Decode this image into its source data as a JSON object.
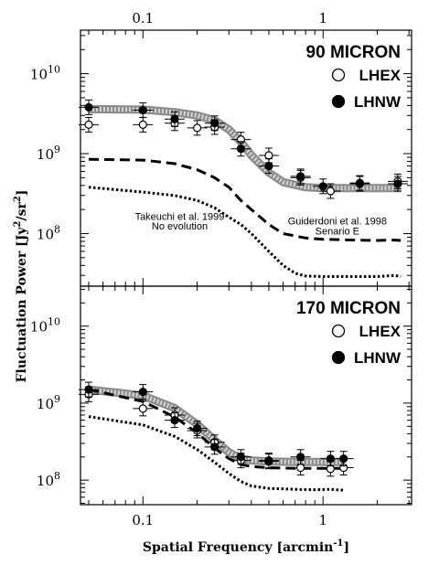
{
  "figure": {
    "xlabel_main": "Spatial Frequency [arcmin",
    "xlabel_sup": "-1",
    "xlabel_end": "]",
    "ylabel_main": "Fluctuation Power [Jy",
    "ylabel_sup1": "2",
    "ylabel_mid": "/sr",
    "ylabel_sup2": "2",
    "ylabel_end": "]"
  },
  "chart_data": [
    {
      "type": "scatter",
      "title": "90 MICRON",
      "x_scale": "log",
      "y_scale": "log",
      "xlim": [
        0.045,
        3.1
      ],
      "ylim": [
        22000000.0,
        35000000000.0
      ],
      "x_ticks": [
        {
          "value": 0.1,
          "label": "0.1"
        },
        {
          "value": 1,
          "label": "1"
        }
      ],
      "y_ticks": [
        {
          "value": 100000000.0,
          "base": "10",
          "exp": "8"
        },
        {
          "value": 1000000000.0,
          "base": "10",
          "exp": "9"
        },
        {
          "value": 10000000000.0,
          "base": "10",
          "exp": "10"
        }
      ],
      "top_axis_labels": true,
      "legend_position": "top-right",
      "series": [
        {
          "name": "LHEX",
          "marker": "open-circle",
          "x": [
            0.05,
            0.1,
            0.15,
            0.2,
            0.25,
            0.35,
            0.5,
            0.75,
            1.1,
            1.6,
            2.6
          ],
          "y": [
            2300000000.0,
            2300000000.0,
            2400000000.0,
            2100000000.0,
            2150000000.0,
            1500000000.0,
            950000000.0,
            500000000.0,
            340000000.0,
            430000000.0,
            450000000.0
          ]
        },
        {
          "name": "LHNW",
          "marker": "filled-circle",
          "x": [
            0.05,
            0.1,
            0.15,
            0.25,
            0.35,
            0.5,
            0.75,
            1.0,
            1.6,
            2.6
          ],
          "y": [
            3800000000.0,
            3500000000.0,
            2700000000.0,
            2400000000.0,
            1150000000.0,
            700000000.0,
            520000000.0,
            390000000.0,
            420000000.0,
            420000000.0
          ]
        },
        {
          "style": "thick-gray-band",
          "x": [
            0.05,
            0.1,
            0.15,
            0.2,
            0.25,
            0.3,
            0.35,
            0.4,
            0.5,
            0.6,
            0.8,
            1.0,
            1.5,
            2.0,
            2.7
          ],
          "y": [
            3600000000.0,
            3550000000.0,
            3300000000.0,
            3000000000.0,
            2600000000.0,
            2000000000.0,
            1400000000.0,
            950000000.0,
            580000000.0,
            440000000.0,
            380000000.0,
            370000000.0,
            370000000.0,
            370000000.0,
            370000000.0
          ]
        },
        {
          "style": "dashed",
          "x": [
            0.05,
            0.1,
            0.15,
            0.2,
            0.25,
            0.3,
            0.35,
            0.4,
            0.5,
            0.6,
            0.8,
            1.0,
            1.5,
            2.0,
            2.5,
            2.7
          ],
          "y": [
            850000000.0,
            830000000.0,
            750000000.0,
            630000000.0,
            500000000.0,
            380000000.0,
            260000000.0,
            200000000.0,
            130000000.0,
            100000000.0,
            88000000.0,
            85000000.0,
            83000000.0,
            82000000.0,
            83000000.0,
            82000000.0
          ]
        },
        {
          "style": "dotted",
          "x": [
            0.05,
            0.1,
            0.15,
            0.2,
            0.25,
            0.3,
            0.35,
            0.4,
            0.5,
            0.6,
            0.7,
            0.8,
            1.0,
            1.5,
            2.0,
            2.5,
            2.7
          ],
          "y": [
            380000000.0,
            330000000.0,
            300000000.0,
            260000000.0,
            210000000.0,
            160000000.0,
            130000000.0,
            100000000.0,
            60000000.0,
            40000000.0,
            32000000.0,
            29500000.0,
            29000000.0,
            29000000.0,
            29000000.0,
            30000000.0,
            29000000.0
          ]
        }
      ],
      "annotations": [
        {
          "text": "Takeuchi et al. 1999",
          "x": 0.16,
          "y": 148000000.0
        },
        {
          "text": "No evolution",
          "x": 0.16,
          "y": 112000000.0
        },
        {
          "text": "Guiderdoni et al. 1998",
          "x": 1.2,
          "y": 130000000.0
        },
        {
          "text": "Senario E",
          "x": 1.2,
          "y": 98000000.0
        }
      ]
    },
    {
      "type": "scatter",
      "title": "170 MICRON",
      "x_scale": "log",
      "y_scale": "log",
      "xlim": [
        0.045,
        3.1
      ],
      "ylim": [
        48000000.0,
        33000000000.0
      ],
      "x_ticks": [
        {
          "value": 0.1,
          "label": "0.1"
        },
        {
          "value": 1,
          "label": "1"
        }
      ],
      "y_ticks": [
        {
          "value": 100000000.0,
          "base": "10",
          "exp": "8"
        },
        {
          "value": 1000000000.0,
          "base": "10",
          "exp": "9"
        },
        {
          "value": 10000000000.0,
          "base": "10",
          "exp": "10"
        }
      ],
      "top_axis_labels": false,
      "legend_position": "top-right",
      "series": [
        {
          "name": "LHEX",
          "marker": "open-circle",
          "x": [
            0.05,
            0.1,
            0.15,
            0.2,
            0.25,
            0.35,
            0.5,
            0.75,
            1.1,
            1.3
          ],
          "y": [
            1300000000.0,
            850000000.0,
            700000000.0,
            440000000.0,
            310000000.0,
            180000000.0,
            175000000.0,
            145000000.0,
            140000000.0,
            145000000.0
          ]
        },
        {
          "name": "LHNW",
          "marker": "filled-circle",
          "x": [
            0.05,
            0.1,
            0.15,
            0.2,
            0.25,
            0.35,
            0.5,
            0.75,
            1.1,
            1.3
          ],
          "y": [
            1500000000.0,
            1400000000.0,
            600000000.0,
            470000000.0,
            270000000.0,
            200000000.0,
            180000000.0,
            200000000.0,
            190000000.0,
            190000000.0
          ]
        },
        {
          "style": "thick-gray-band",
          "x": [
            0.05,
            0.1,
            0.15,
            0.2,
            0.25,
            0.3,
            0.35,
            0.4,
            0.5,
            0.7,
            1.0,
            1.3
          ],
          "y": [
            1500000000.0,
            1250000000.0,
            860000000.0,
            530000000.0,
            330000000.0,
            230000000.0,
            190000000.0,
            180000000.0,
            175000000.0,
            172000000.0,
            172000000.0,
            172000000.0
          ]
        },
        {
          "style": "dashed",
          "x": [
            0.05,
            0.1,
            0.15,
            0.2,
            0.25,
            0.3,
            0.35,
            0.4,
            0.5,
            0.7,
            1.0,
            1.3
          ],
          "y": [
            1500000000.0,
            1050000000.0,
            660000000.0,
            410000000.0,
            260000000.0,
            190000000.0,
            160000000.0,
            150000000.0,
            145000000.0,
            142000000.0,
            142000000.0,
            142000000.0
          ]
        },
        {
          "style": "dotted",
          "x": [
            0.05,
            0.1,
            0.15,
            0.2,
            0.25,
            0.3,
            0.35,
            0.4,
            0.5,
            0.7,
            0.9,
            1.1,
            1.2,
            1.3
          ],
          "y": [
            670000000.0,
            520000000.0,
            370000000.0,
            250000000.0,
            170000000.0,
            122000000.0,
            96000000.0,
            84000000.0,
            78000000.0,
            76000000.0,
            75000000.0,
            76000000.0,
            75000000.0,
            74000000.0
          ]
        }
      ],
      "annotations": []
    }
  ]
}
